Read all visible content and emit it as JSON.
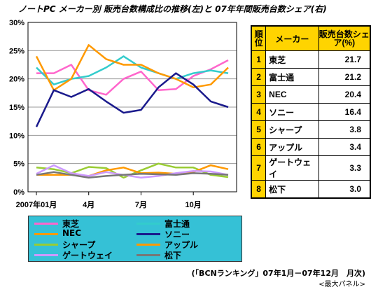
{
  "chart_data": {
    "type": "line",
    "title": "ノートPC メーカー別 販売台数構成比の推移(左)と 07年年間販売台数シェア(右)",
    "xlabel": "",
    "ylabel": "",
    "ylim": [
      0,
      30
    ],
    "yticks": [
      "0%",
      "5%",
      "10%",
      "15%",
      "20%",
      "25%",
      "30%"
    ],
    "x_tick_labels": [
      "2007年01月",
      "4月",
      "7月",
      "10月"
    ],
    "x": [
      "2007-01",
      "2007-02",
      "2007-03",
      "2007-04",
      "2007-05",
      "2007-06",
      "2007-07",
      "2007-08",
      "2007-09",
      "2007-10",
      "2007-11",
      "2007-12"
    ],
    "grid": true,
    "legend_position": "bottom",
    "series": [
      {
        "name": "東芝",
        "color": "#ff66cc",
        "values": [
          21.0,
          21.0,
          22.5,
          18.0,
          17.2,
          20.0,
          21.3,
          18.0,
          18.2,
          20.5,
          21.7,
          23.3
        ]
      },
      {
        "name": "富士通",
        "color": "#33cccc",
        "values": [
          22.0,
          19.0,
          20.0,
          20.5,
          22.0,
          24.0,
          22.0,
          21.0,
          20.0,
          21.0,
          21.5,
          21.0
        ]
      },
      {
        "name": "NEC",
        "color": "#ff9900",
        "values": [
          24.0,
          18.0,
          20.0,
          26.0,
          23.5,
          22.5,
          22.5,
          21.0,
          20.0,
          18.5,
          19.0,
          22.0
        ]
      },
      {
        "name": "ソニー",
        "color": "#1a1a8c",
        "values": [
          11.5,
          18.0,
          16.8,
          18.2,
          16.0,
          14.0,
          14.5,
          18.5,
          21.0,
          19.0,
          16.0,
          15.0
        ]
      },
      {
        "name": "シャープ",
        "color": "#99cc33",
        "values": [
          4.3,
          4.0,
          3.3,
          4.4,
          4.2,
          2.5,
          3.8,
          5.0,
          4.3,
          4.3,
          3.0,
          2.6
        ]
      },
      {
        "name": "アップル",
        "color": "#ff9900",
        "values": [
          3.0,
          3.0,
          3.0,
          2.8,
          3.8,
          4.3,
          3.3,
          3.4,
          3.2,
          3.5,
          4.7,
          4.0
        ]
      },
      {
        "name": "ゲートウェイ",
        "color": "#cc99ff",
        "values": [
          3.2,
          4.7,
          3.3,
          2.8,
          3.5,
          3.0,
          2.5,
          2.8,
          3.3,
          3.7,
          3.6,
          3.0
        ]
      },
      {
        "name": "松下",
        "color": "#777777",
        "values": [
          3.0,
          3.5,
          3.0,
          2.5,
          2.8,
          3.0,
          3.2,
          3.1,
          3.0,
          3.3,
          3.2,
          3.0
        ]
      }
    ]
  },
  "share_table": {
    "header": {
      "rank": "順位",
      "maker": "メーカー",
      "share": "販売台数シェア(%)"
    },
    "rows": [
      {
        "rank": "1",
        "maker": "東芝",
        "share": "21.7"
      },
      {
        "rank": "2",
        "maker": "富士通",
        "share": "21.2"
      },
      {
        "rank": "3",
        "maker": "NEC",
        "share": "20.4"
      },
      {
        "rank": "4",
        "maker": "ソニー",
        "share": "16.4"
      },
      {
        "rank": "5",
        "maker": "シャープ",
        "share": "3.8"
      },
      {
        "rank": "6",
        "maker": "アップル",
        "share": "3.4"
      },
      {
        "rank": "7",
        "maker": "ゲートウェイ",
        "share": "3.3"
      },
      {
        "rank": "8",
        "maker": "松下",
        "share": "3.0"
      }
    ]
  },
  "footer": {
    "source": "(「BCNランキング」07年1月－07年12月　月次)",
    "panel": "<最大パネル>"
  },
  "colors": {
    "legend_background": "#35c1d6",
    "table_highlight": "#ffd400"
  }
}
